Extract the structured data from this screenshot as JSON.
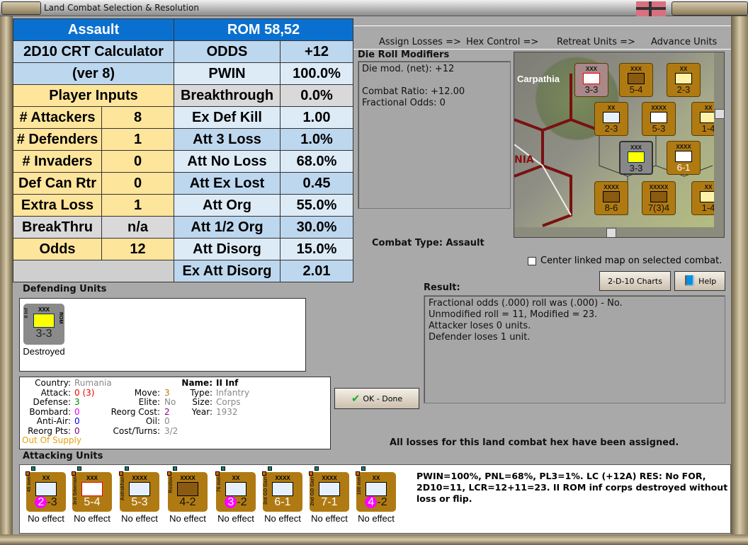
{
  "window": {
    "title": "Land Combat Selection & Resolution"
  },
  "calculator": {
    "header_left": "Assault",
    "header_right": "ROM 58,52",
    "title_line1": "2D10 CRT Calculator",
    "title_line2": "(ver 8)",
    "inputs_heading": "Player Inputs",
    "inputs": [
      {
        "label": "# Attackers",
        "value": "8"
      },
      {
        "label": "# Defenders",
        "value": "1"
      },
      {
        "label": "# Invaders",
        "value": "0"
      },
      {
        "label": "Def Can Rtr",
        "value": "0"
      },
      {
        "label": "Extra Loss",
        "value": "1"
      },
      {
        "label": "BreakThru",
        "value": "n/a"
      },
      {
        "label": "Odds",
        "value": "12"
      }
    ],
    "outputs": [
      {
        "label": "ODDS",
        "value": "+12"
      },
      {
        "label": "PWIN",
        "value": "100.0%"
      },
      {
        "label": "Breakthrough",
        "value": "0.0%"
      },
      {
        "label": "Ex Def Kill",
        "value": "1.00"
      },
      {
        "label": "Att 3 Loss",
        "value": "1.0%"
      },
      {
        "label": "Att No Loss",
        "value": "68.0%"
      },
      {
        "label": "Att Ex Lost",
        "value": "0.45"
      },
      {
        "label": "Att Org",
        "value": "55.0%"
      },
      {
        "label": "Att 1/2 Org",
        "value": "30.0%"
      },
      {
        "label": "Att Disorg",
        "value": "15.0%"
      },
      {
        "label": "Ex Att Disorg",
        "value": "2.01"
      }
    ]
  },
  "steps": [
    "Assign Losses =>",
    "Hex Control =>",
    "Retreat Units =>",
    "Advance Units"
  ],
  "die_roll": {
    "heading": "Die Roll Modifiers",
    "lines": [
      "Die mod. (net): +12",
      "",
      "Combat Ratio: +12.00",
      "Fractional Odds: 0"
    ]
  },
  "combat_type": "Combat Type:  Assault",
  "center_map_checkbox": {
    "label": "Center linked map on selected combat.",
    "checked": false
  },
  "buttons": {
    "charts": "2-D-10 Charts",
    "help": "Help",
    "ok": "OK - Done"
  },
  "result": {
    "heading": "Result:",
    "lines": [
      "Fractional odds (.000) roll was (.000)  - No.",
      "Unmodified roll = 11, Modified = 23.",
      "Attacker loses 0 units.",
      "Defender loses 1 unit."
    ]
  },
  "defending": {
    "heading": "Defending Units",
    "units": [
      {
        "name": "II Inf",
        "nation": "ROM",
        "size": "XXX",
        "strength": "3-3",
        "status": "Destroyed"
      }
    ]
  },
  "unit_info": {
    "country_label": "Country:",
    "country": "Rumania",
    "attack_label": "Attack:",
    "attack": "0",
    "attack_alt": "(3)",
    "defense_label": "Defense:",
    "defense": "3",
    "bombard_label": "Bombard:",
    "bombard": "0",
    "antiair_label": "Anti-Air:",
    "antiair": "0",
    "reorgpts_label": "Reorg Pts:",
    "reorgpts": "0",
    "supply": "Out Of Supply",
    "move_label": "Move:",
    "move": "3",
    "elite_label": "Elite:",
    "elite": "No",
    "reorgcost_label": "Reorg Cost:",
    "reorgcost": "2",
    "oil_label": "Oil:",
    "oil": "0",
    "costturns_label": "Cost/Turns:",
    "costturns": "3/2",
    "name_label": "Name:",
    "name": "II Inf",
    "type_label": "Type:",
    "type": "Infantry",
    "size_label": "Size:",
    "size": "Corps",
    "year_label": "Year:",
    "year": "1932"
  },
  "status_message": "All losses for this land combat hex have been assigned.",
  "attacking": {
    "heading": "Attacking Units",
    "units": [
      {
        "name": "45 mm",
        "size": "XX",
        "attack": "2",
        "defense": "3",
        "badge": true,
        "status": "No effect"
      },
      {
        "name": "3rd Siberian",
        "size": "XXX",
        "attack": "5",
        "defense": "4",
        "badge": false,
        "status": "No effect"
      },
      {
        "name": "Astrakhan",
        "size": "XXXX",
        "attack": "5",
        "defense": "3",
        "badge": false,
        "status": "No effect"
      },
      {
        "name": "Rostov",
        "size": "XXXX",
        "attack": "4",
        "defense": "2",
        "badge": false,
        "status": "No effect"
      },
      {
        "name": "76 mm",
        "size": "XX",
        "attack": "3",
        "defense": "2",
        "badge": true,
        "status": "No effect"
      },
      {
        "name": "3rd GD Garr",
        "size": "XXXX",
        "attack": "6",
        "defense": "1",
        "badge": false,
        "status": "No effect"
      },
      {
        "name": "2nd GD Garr",
        "size": "XXXX",
        "attack": "7",
        "defense": "1",
        "badge": false,
        "status": "No effect"
      },
      {
        "name": "100 mm",
        "size": "XX",
        "attack": "4",
        "defense": "2",
        "badge": true,
        "status": "No effect"
      }
    ]
  },
  "narrative": "PWIN=100%, PNL=68%, PL3=1%.  LC (+12A) RES:  No FOR, 2D10=11, LCR=12+11=23.  II ROM inf corps destroyed without loss or flip.",
  "map": {
    "labels": [
      "Carpathia",
      "NIA"
    ],
    "counters": [
      {
        "size": "XXX",
        "strength": "3-3"
      },
      {
        "size": "XXX",
        "strength": "5-4"
      },
      {
        "size": "XX",
        "strength": "2-3"
      },
      {
        "size": "XX",
        "strength": "2-3"
      },
      {
        "size": "XXXX",
        "strength": "5-3"
      },
      {
        "size": "XXX",
        "strength": "3-3"
      },
      {
        "size": "XXXX",
        "strength": "6-1"
      },
      {
        "size": "XXXX",
        "strength": "8-6"
      },
      {
        "size": "XXXXX",
        "strength": "7(3)4"
      },
      {
        "size": "XX",
        "strength": "1-4"
      },
      {
        "size": "XX",
        "strength": "1-4"
      }
    ]
  }
}
